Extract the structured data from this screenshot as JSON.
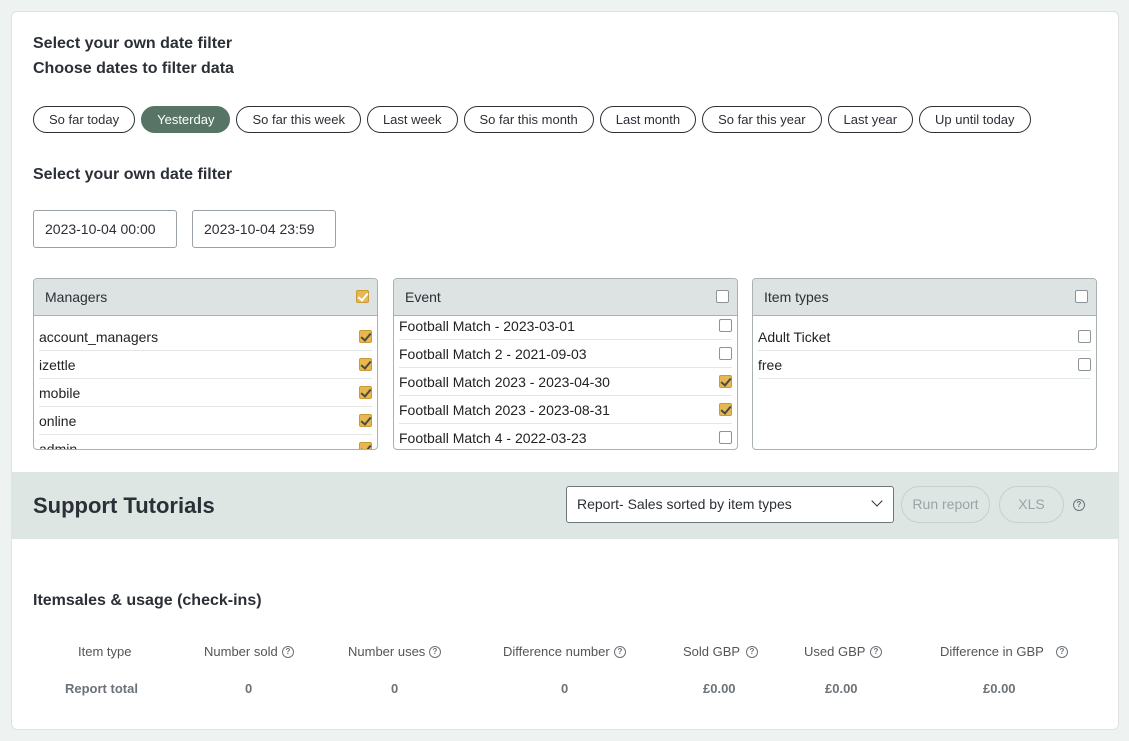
{
  "header": {
    "title1": "Select your own date filter",
    "title2": "Choose dates to filter data"
  },
  "quick_filters": [
    {
      "label": "So far today",
      "active": false
    },
    {
      "label": "Yesterday",
      "active": true
    },
    {
      "label": "So far this week",
      "active": false
    },
    {
      "label": "Last week",
      "active": false
    },
    {
      "label": "So far this month",
      "active": false
    },
    {
      "label": "Last month",
      "active": false
    },
    {
      "label": "So far this year",
      "active": false
    },
    {
      "label": "Last year",
      "active": false
    },
    {
      "label": "Up until today",
      "active": false
    }
  ],
  "custom_filter": {
    "title": "Select your own date filter",
    "from": "2023-10-04 00:00",
    "to": "2023-10-04 23:59"
  },
  "managers": {
    "header": "Managers",
    "all_checked": true,
    "items": [
      {
        "label": "account_managers",
        "checked": true
      },
      {
        "label": "izettle",
        "checked": true
      },
      {
        "label": "mobile",
        "checked": true
      },
      {
        "label": "online",
        "checked": true
      },
      {
        "label": "admin",
        "checked": true
      }
    ]
  },
  "events": {
    "header": "Event",
    "all_checked": false,
    "items": [
      {
        "label": "Football Match - 2023-03-01",
        "checked": false
      },
      {
        "label": "Football Match 2 - 2021-09-03",
        "checked": false
      },
      {
        "label": "Football Match 2023 - 2023-04-30",
        "checked": true
      },
      {
        "label": "Football Match 2023 - 2023-08-31",
        "checked": true
      },
      {
        "label": "Football Match 4 - 2022-03-23",
        "checked": false
      }
    ]
  },
  "item_types": {
    "header": "Item types",
    "all_checked": false,
    "items": [
      {
        "label": "Adult Ticket",
        "checked": false
      },
      {
        "label": "free",
        "checked": false
      }
    ]
  },
  "toolbar": {
    "title": "Support Tutorials",
    "report_select": "Report- Sales sorted by item types",
    "run_label": "Run report",
    "xls_label": "XLS",
    "help_icon": "question-circle-icon"
  },
  "report": {
    "title": "Itemsales & usage (check-ins)",
    "columns": [
      "Item type",
      "Number sold",
      "Number uses",
      "Difference number",
      "Sold GBP",
      "Used GBP",
      "Difference in GBP"
    ],
    "total_row": [
      "Report total",
      "0",
      "0",
      "0",
      "£0.00",
      "£0.00",
      "£0.00"
    ]
  }
}
